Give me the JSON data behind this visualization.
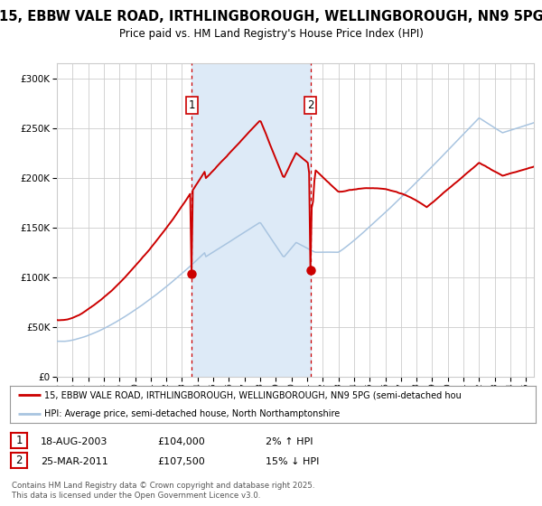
{
  "title_line1": "15, EBBW VALE ROAD, IRTHLINGBOROUGH, WELLINGBOROUGH, NN9 5PG",
  "title_line2": "Price paid vs. HM Land Registry's House Price Index (HPI)",
  "ytick_vals": [
    0,
    50000,
    100000,
    150000,
    200000,
    250000,
    300000
  ],
  "ylim": [
    0,
    315000
  ],
  "sale1_price": 104000,
  "sale2_price": 107500,
  "legend_line1": "15, EBBW VALE ROAD, IRTHLINGBOROUGH, WELLINGBOROUGH, NN9 5PG (semi-detached hou",
  "legend_line2": "HPI: Average price, semi-detached house, North Northamptonshire",
  "footer": "Contains HM Land Registry data © Crown copyright and database right 2025.\nThis data is licensed under the Open Government Licence v3.0.",
  "hpi_line_color": "#a8c4e0",
  "price_line_color": "#cc0000",
  "dot_color": "#cc0000",
  "shade_color": "#ddeaf7",
  "vline_color": "#cc0000",
  "bg_color": "#ffffff",
  "grid_color": "#cccccc"
}
